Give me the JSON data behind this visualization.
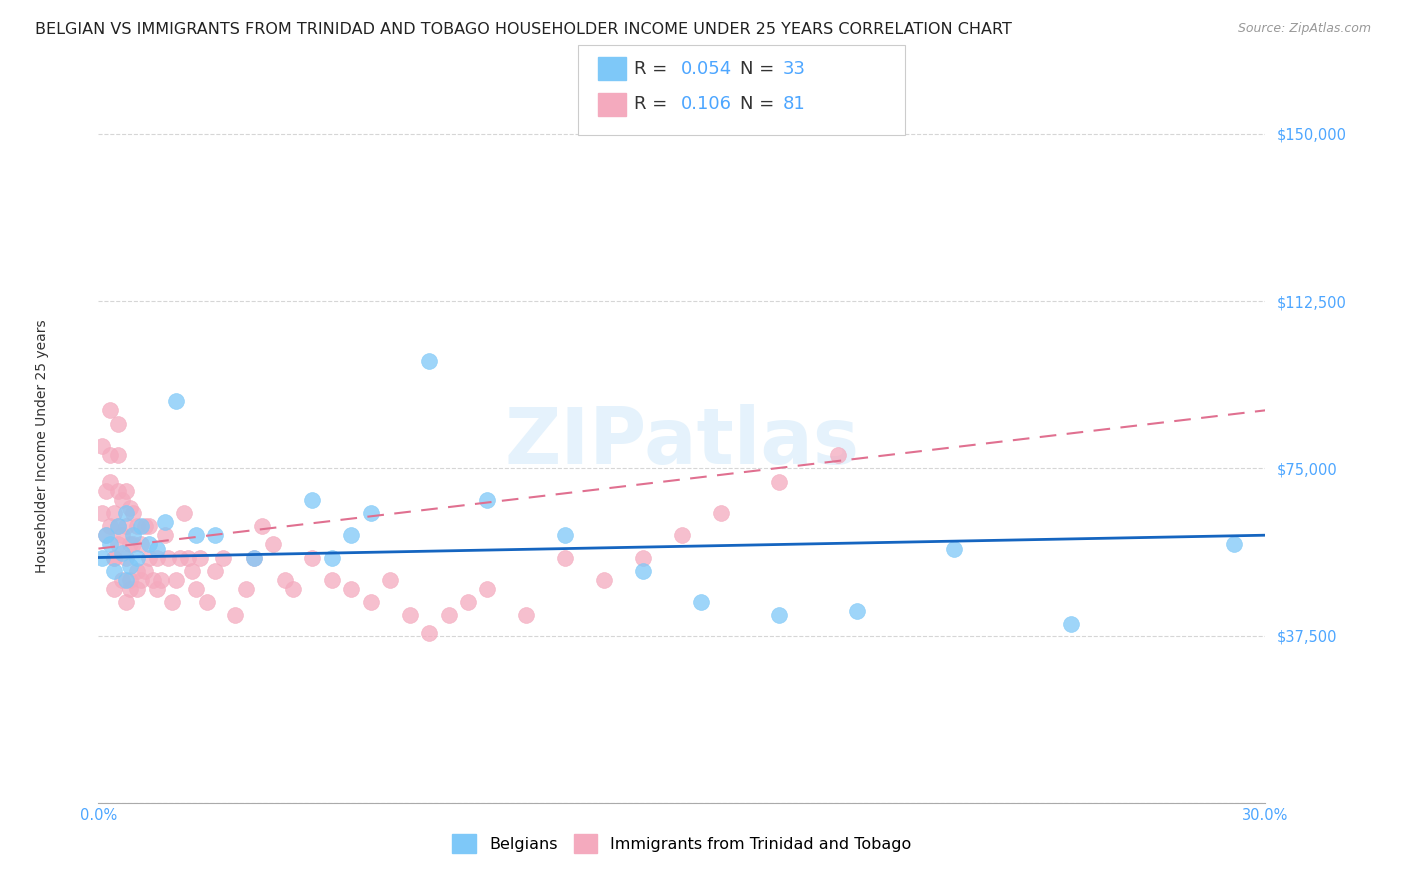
{
  "title": "BELGIAN VS IMMIGRANTS FROM TRINIDAD AND TOBAGO HOUSEHOLDER INCOME UNDER 25 YEARS CORRELATION CHART",
  "source": "Source: ZipAtlas.com",
  "ylabel": "Householder Income Under 25 years",
  "xlim": [
    0,
    0.3
  ],
  "ylim": [
    0,
    162000
  ],
  "yticks": [
    0,
    37500,
    75000,
    112500,
    150000
  ],
  "ytick_labels": [
    "",
    "$37,500",
    "$75,000",
    "$112,500",
    "$150,000"
  ],
  "xticks": [
    0.0,
    0.05,
    0.1,
    0.15,
    0.2,
    0.25,
    0.3
  ],
  "xtick_labels": [
    "0.0%",
    "",
    "",
    "",
    "",
    "",
    "30.0%"
  ],
  "legend_r_belgian": "0.054",
  "legend_n_belgian": "33",
  "legend_r_tt": "0.106",
  "legend_n_tt": "81",
  "belgian_color": "#7EC8F8",
  "tt_color": "#F4AABE",
  "trend_belgian_color": "#1565C0",
  "trend_tt_color": "#E07090",
  "watermark": "ZIPatlas",
  "belgians_x": [
    0.001,
    0.002,
    0.003,
    0.004,
    0.005,
    0.006,
    0.007,
    0.007,
    0.008,
    0.009,
    0.01,
    0.011,
    0.013,
    0.015,
    0.017,
    0.02,
    0.025,
    0.03,
    0.04,
    0.055,
    0.06,
    0.065,
    0.07,
    0.085,
    0.1,
    0.12,
    0.14,
    0.155,
    0.175,
    0.195,
    0.22,
    0.25,
    0.292
  ],
  "belgians_y": [
    55000,
    60000,
    58000,
    52000,
    62000,
    56000,
    50000,
    65000,
    53000,
    60000,
    55000,
    62000,
    58000,
    57000,
    63000,
    90000,
    60000,
    60000,
    55000,
    68000,
    55000,
    60000,
    65000,
    99000,
    68000,
    60000,
    52000,
    45000,
    42000,
    43000,
    57000,
    40000,
    58000
  ],
  "tt_x": [
    0.001,
    0.001,
    0.002,
    0.002,
    0.003,
    0.003,
    0.003,
    0.003,
    0.004,
    0.004,
    0.004,
    0.004,
    0.005,
    0.005,
    0.005,
    0.005,
    0.005,
    0.006,
    0.006,
    0.006,
    0.007,
    0.007,
    0.007,
    0.007,
    0.008,
    0.008,
    0.008,
    0.008,
    0.009,
    0.009,
    0.01,
    0.01,
    0.01,
    0.011,
    0.011,
    0.012,
    0.012,
    0.013,
    0.013,
    0.014,
    0.015,
    0.015,
    0.016,
    0.017,
    0.018,
    0.019,
    0.02,
    0.021,
    0.022,
    0.023,
    0.024,
    0.025,
    0.026,
    0.028,
    0.03,
    0.032,
    0.035,
    0.038,
    0.04,
    0.042,
    0.045,
    0.048,
    0.05,
    0.055,
    0.06,
    0.065,
    0.07,
    0.075,
    0.08,
    0.085,
    0.09,
    0.095,
    0.1,
    0.11,
    0.12,
    0.13,
    0.14,
    0.15,
    0.16,
    0.175,
    0.19
  ],
  "tt_y": [
    65000,
    80000,
    60000,
    70000,
    62000,
    72000,
    78000,
    88000,
    55000,
    65000,
    55000,
    48000,
    58000,
    62000,
    70000,
    78000,
    85000,
    50000,
    60000,
    68000,
    55000,
    62000,
    70000,
    45000,
    50000,
    58000,
    66000,
    48000,
    58000,
    65000,
    52000,
    62000,
    48000,
    58000,
    50000,
    52000,
    62000,
    55000,
    62000,
    50000,
    55000,
    48000,
    50000,
    60000,
    55000,
    45000,
    50000,
    55000,
    65000,
    55000,
    52000,
    48000,
    55000,
    45000,
    52000,
    55000,
    42000,
    48000,
    55000,
    62000,
    58000,
    50000,
    48000,
    55000,
    50000,
    48000,
    45000,
    50000,
    42000,
    38000,
    42000,
    45000,
    48000,
    42000,
    55000,
    50000,
    55000,
    60000,
    65000,
    72000,
    78000
  ],
  "background_color": "#FFFFFF",
  "grid_color": "#CCCCCC",
  "title_fontsize": 11.5,
  "axis_label_fontsize": 10,
  "tick_fontsize": 10.5,
  "legend_fontsize": 12
}
